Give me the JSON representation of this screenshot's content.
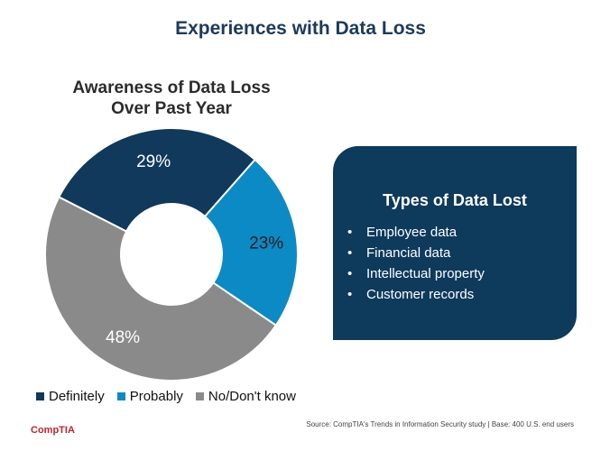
{
  "title": "Experiences with Data Loss",
  "subtitle": "Awareness of Data Loss Over Past Year",
  "chart_data": {
    "type": "pie",
    "title": "Awareness of Data Loss Over Past Year",
    "categories": [
      "Definitely",
      "Probably",
      "No/Don't know"
    ],
    "values": [
      29,
      23,
      48
    ],
    "labels": [
      "29%",
      "23%",
      "48%"
    ],
    "colors": [
      "#10395c",
      "#0b8ac6",
      "#8a8a8a"
    ],
    "legend_position": "bottom"
  },
  "panel": {
    "title": "Types of Data Lost",
    "items": [
      "Employee data",
      "Financial data",
      "Intellectual property",
      "Customer records"
    ]
  },
  "source": "Source: CompTIA's Trends in Information Security study  |  Base: 400 U.S. end users",
  "logo": "CompTIA"
}
